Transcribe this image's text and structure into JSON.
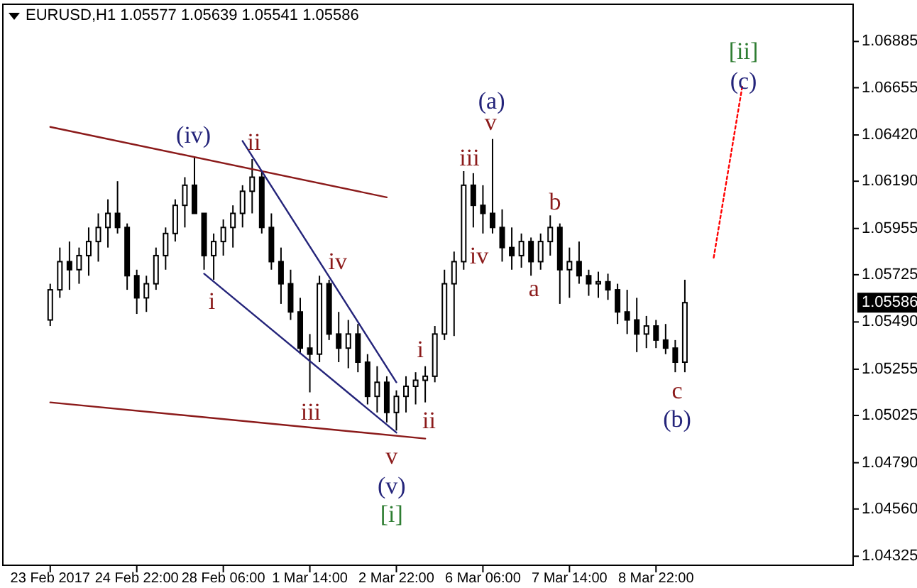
{
  "chart_data": {
    "type": "candlestick",
    "title": "EURUSD,H1  1.05577 1.05639 1.05541 1.05586",
    "categories": [
      "23 Feb 2017",
      null,
      null,
      null,
      null,
      null,
      null,
      null,
      null,
      "24 Feb 22:00",
      null,
      null,
      null,
      null,
      null,
      null,
      null,
      null,
      "28 Feb 06:00",
      null,
      null,
      null,
      null,
      null,
      null,
      null,
      null,
      "1 Mar 14:00",
      null,
      null,
      null,
      null,
      null,
      null,
      null,
      null,
      "2 Mar 22:00",
      null,
      null,
      null,
      null,
      null,
      null,
      null,
      null,
      "6 Mar 06:00",
      null,
      null,
      null,
      null,
      null,
      null,
      null,
      null,
      "7 Mar 14:00",
      null,
      null,
      null,
      null,
      null,
      null,
      null,
      null,
      "8 Mar 22:00",
      null,
      null,
      null,
      null,
      null,
      null,
      null,
      null,
      null,
      null,
      null,
      null,
      null,
      null,
      null,
      null,
      null,
      null,
      null,
      null
    ],
    "ohlc": [
      [
        1.055,
        1.0568,
        1.0547,
        1.0565
      ],
      [
        1.0565,
        1.0586,
        1.0561,
        1.0579
      ],
      [
        1.0579,
        1.0589,
        1.0565,
        1.0575
      ],
      [
        1.0575,
        1.0586,
        1.0568,
        1.0582
      ],
      [
        1.0582,
        1.0596,
        1.0572,
        1.0589
      ],
      [
        1.0589,
        1.0603,
        1.0579,
        1.0596
      ],
      [
        1.0596,
        1.061,
        1.0586,
        1.0603
      ],
      [
        1.0603,
        1.0619,
        1.0593,
        1.0596
      ],
      [
        1.0596,
        1.0598,
        1.0565,
        1.0572
      ],
      [
        1.0572,
        1.0575,
        1.0553,
        1.0561
      ],
      [
        1.0561,
        1.0572,
        1.0554,
        1.0568
      ],
      [
        1.0568,
        1.0586,
        1.0565,
        1.0582
      ],
      [
        1.0582,
        1.0596,
        1.0575,
        1.0593
      ],
      [
        1.0593,
        1.061,
        1.0589,
        1.0607
      ],
      [
        1.0607,
        1.0621,
        1.0596,
        1.0617
      ],
      [
        1.0617,
        1.0631,
        1.0603,
        1.0603
      ],
      [
        1.0603,
        1.0603,
        1.0575,
        1.0582
      ],
      [
        1.0582,
        1.0593,
        1.057,
        1.0589
      ],
      [
        1.0589,
        1.06,
        1.0582,
        1.0596
      ],
      [
        1.0596,
        1.0607,
        1.0586,
        1.0603
      ],
      [
        1.0603,
        1.0617,
        1.0596,
        1.0614
      ],
      [
        1.0614,
        1.063,
        1.0603,
        1.0621
      ],
      [
        1.0621,
        1.0624,
        1.0593,
        1.0596
      ],
      [
        1.0596,
        1.0603,
        1.0575,
        1.0579
      ],
      [
        1.0579,
        1.0586,
        1.0558,
        1.0568
      ],
      [
        1.0568,
        1.0575,
        1.055,
        1.0554
      ],
      [
        1.0554,
        1.0561,
        1.0533,
        1.0536
      ],
      [
        1.0536,
        1.0543,
        1.0514,
        1.0533
      ],
      [
        1.0533,
        1.0572,
        1.0529,
        1.0568
      ],
      [
        1.0568,
        1.057,
        1.054,
        1.0543
      ],
      [
        1.0543,
        1.0554,
        1.0529,
        1.0536
      ],
      [
        1.0536,
        1.055,
        1.0526,
        1.0543
      ],
      [
        1.0543,
        1.0548,
        1.0524,
        1.0529
      ],
      [
        1.0529,
        1.0533,
        1.0508,
        1.0512
      ],
      [
        1.0512,
        1.0527,
        1.0504,
        1.0519
      ],
      [
        1.0519,
        1.0522,
        1.0499,
        1.0504
      ],
      [
        1.0504,
        1.0515,
        1.0495,
        1.0512
      ],
      [
        1.0512,
        1.0522,
        1.0504,
        1.0517
      ],
      [
        1.0517,
        1.0524,
        1.0508,
        1.052
      ],
      [
        1.052,
        1.0527,
        1.0509,
        1.0522
      ],
      [
        1.0522,
        1.0547,
        1.0519,
        1.0543
      ],
      [
        1.0543,
        1.0575,
        1.054,
        1.0568
      ],
      [
        1.0568,
        1.0584,
        1.0542,
        1.0579
      ],
      [
        1.0579,
        1.0624,
        1.0575,
        1.0617
      ],
      [
        1.0617,
        1.0623,
        1.0596,
        1.0607
      ],
      [
        1.0607,
        1.0617,
        1.0593,
        1.0603
      ],
      [
        1.0603,
        1.064,
        1.0593,
        1.0596
      ],
      [
        1.0596,
        1.0605,
        1.0579,
        1.0586
      ],
      [
        1.0586,
        1.0596,
        1.0575,
        1.0582
      ],
      [
        1.0582,
        1.0593,
        1.0576,
        1.0589
      ],
      [
        1.0589,
        1.0591,
        1.0572,
        1.0579
      ],
      [
        1.0579,
        1.0593,
        1.0575,
        1.0589
      ],
      [
        1.0589,
        1.0602,
        1.0582,
        1.0596
      ],
      [
        1.0596,
        1.0598,
        1.0558,
        1.0575
      ],
      [
        1.0575,
        1.0586,
        1.0561,
        1.0579
      ],
      [
        1.0579,
        1.0589,
        1.0568,
        1.0572
      ],
      [
        1.0572,
        1.0575,
        1.0562,
        1.0568
      ],
      [
        1.0568,
        1.0574,
        1.0561,
        1.0569
      ],
      [
        1.0569,
        1.0573,
        1.056,
        1.0565
      ],
      [
        1.0565,
        1.0568,
        1.0548,
        1.0554
      ],
      [
        1.0554,
        1.0565,
        1.0543,
        1.055
      ],
      [
        1.055,
        1.0561,
        1.0534,
        1.0543
      ],
      [
        1.0543,
        1.0552,
        1.0536,
        1.0547
      ],
      [
        1.0547,
        1.055,
        1.0536,
        1.054
      ],
      [
        1.054,
        1.0548,
        1.0533,
        1.0536
      ],
      [
        1.0536,
        1.054,
        1.0524,
        1.0529
      ],
      [
        1.0529,
        1.057,
        1.0524,
        1.05586
      ],
      null,
      null,
      null,
      null,
      null,
      null,
      null,
      null,
      null,
      null,
      null,
      null,
      null,
      null,
      null,
      null,
      null
    ],
    "series": [
      {
        "type": "line",
        "color": "#8b1a1a",
        "values": [
          1.0646,
          null,
          null,
          null,
          null,
          null,
          null,
          null,
          null,
          null,
          null,
          null,
          null,
          null,
          null,
          null,
          null,
          null,
          null,
          null,
          null,
          null,
          null,
          null,
          null,
          null,
          null,
          null,
          null,
          null,
          null,
          null,
          null,
          null,
          null,
          1.0611,
          null,
          null,
          null,
          null,
          null,
          null,
          null,
          null,
          null,
          null,
          null,
          null,
          null,
          null,
          null,
          null,
          null,
          null,
          null,
          null,
          null,
          null,
          null,
          null,
          null,
          null,
          null,
          null,
          null,
          null,
          null,
          null,
          null,
          null,
          null,
          null,
          null,
          null,
          null,
          null,
          null,
          null,
          null,
          null,
          null,
          null,
          null,
          null
        ]
      },
      {
        "type": "line",
        "color": "#8b1a1a",
        "values": [
          1.0509,
          null,
          null,
          null,
          null,
          null,
          null,
          null,
          null,
          null,
          null,
          null,
          null,
          null,
          null,
          null,
          null,
          null,
          null,
          null,
          null,
          null,
          null,
          null,
          null,
          null,
          null,
          null,
          null,
          null,
          null,
          null,
          null,
          null,
          null,
          null,
          null,
          null,
          null,
          1.0491,
          null,
          null,
          null,
          null,
          null,
          null,
          null,
          null,
          null,
          null,
          null,
          null,
          null,
          null,
          null,
          null,
          null,
          null,
          null,
          null,
          null,
          null,
          null,
          null,
          null,
          null,
          null,
          null,
          null,
          null,
          null,
          null,
          null,
          null,
          null,
          null,
          null,
          null,
          null,
          null,
          null,
          null,
          null,
          null
        ]
      },
      {
        "type": "line",
        "color": "#24247a",
        "values": [
          null,
          null,
          null,
          null,
          null,
          null,
          null,
          null,
          null,
          null,
          null,
          null,
          null,
          null,
          null,
          null,
          null,
          null,
          null,
          null,
          1.0639,
          null,
          null,
          null,
          null,
          null,
          null,
          null,
          null,
          null,
          null,
          null,
          null,
          null,
          null,
          null,
          1.0519,
          null,
          null,
          null,
          null,
          null,
          null,
          null,
          null,
          null,
          null,
          null,
          null,
          null,
          null,
          null,
          null,
          null,
          null,
          null,
          null,
          null,
          null,
          null,
          null,
          null,
          null,
          null,
          null,
          null,
          null,
          null,
          null,
          null,
          null,
          null,
          null,
          null,
          null,
          null,
          null,
          null,
          null,
          null,
          null,
          null,
          null,
          null
        ]
      },
      {
        "type": "line",
        "color": "#24247a",
        "values": [
          null,
          null,
          null,
          null,
          null,
          null,
          null,
          null,
          null,
          null,
          null,
          null,
          null,
          null,
          null,
          null,
          1.0573,
          null,
          null,
          null,
          null,
          null,
          null,
          null,
          null,
          null,
          null,
          null,
          null,
          null,
          null,
          null,
          null,
          null,
          null,
          null,
          1.0494,
          null,
          null,
          null,
          null,
          null,
          null,
          null,
          null,
          null,
          null,
          null,
          null,
          null,
          null,
          null,
          null,
          null,
          null,
          null,
          null,
          null,
          null,
          null,
          null,
          null,
          null,
          null,
          null,
          null,
          null,
          null,
          null,
          null,
          null,
          null,
          null,
          null,
          null,
          null,
          null,
          null,
          null,
          null,
          null,
          null,
          null,
          null
        ]
      },
      {
        "type": "line",
        "color": "#ff0000",
        "line_style": "dotted",
        "values": [
          null,
          null,
          null,
          null,
          null,
          null,
          null,
          null,
          null,
          null,
          null,
          null,
          null,
          null,
          null,
          null,
          null,
          null,
          null,
          null,
          null,
          null,
          null,
          null,
          null,
          null,
          null,
          null,
          null,
          null,
          null,
          null,
          null,
          null,
          null,
          null,
          null,
          null,
          null,
          null,
          null,
          null,
          null,
          null,
          null,
          null,
          null,
          null,
          null,
          null,
          null,
          null,
          null,
          null,
          null,
          null,
          null,
          null,
          null,
          null,
          null,
          null,
          null,
          null,
          null,
          null,
          null,
          null,
          null,
          1.0581,
          null,
          null,
          1.0667,
          null,
          null,
          null,
          null,
          null,
          null,
          null,
          null,
          null,
          null,
          null
        ]
      }
    ],
    "ylim": [
      1.0428,
      1.0707
    ],
    "yticks": [
      1.06885,
      1.06655,
      {
        "value": 1.0642,
        "label": "1.06420"
      },
      {
        "value": 1.0619,
        "label": "1.06190"
      },
      1.05955,
      1.05725,
      {
        "value": 1.0549,
        "label": "1.05490"
      },
      1.05255,
      1.05025,
      {
        "value": 1.0479,
        "label": "1.04790"
      },
      {
        "value": 1.0456,
        "label": "1.04560"
      },
      1.04325
    ],
    "annotations": [
      "(iv)",
      "ii",
      "i",
      "iii",
      "iv",
      "v",
      "(v)",
      "[i]",
      "i",
      "ii",
      "iii",
      "(a)",
      "v",
      "iv",
      "a",
      "b",
      "c",
      "(b)",
      "[ii]",
      "(c)",
      {
        "text": "1.05586",
        "y": 1.05586
      }
    ],
    "grid": false
  }
}
